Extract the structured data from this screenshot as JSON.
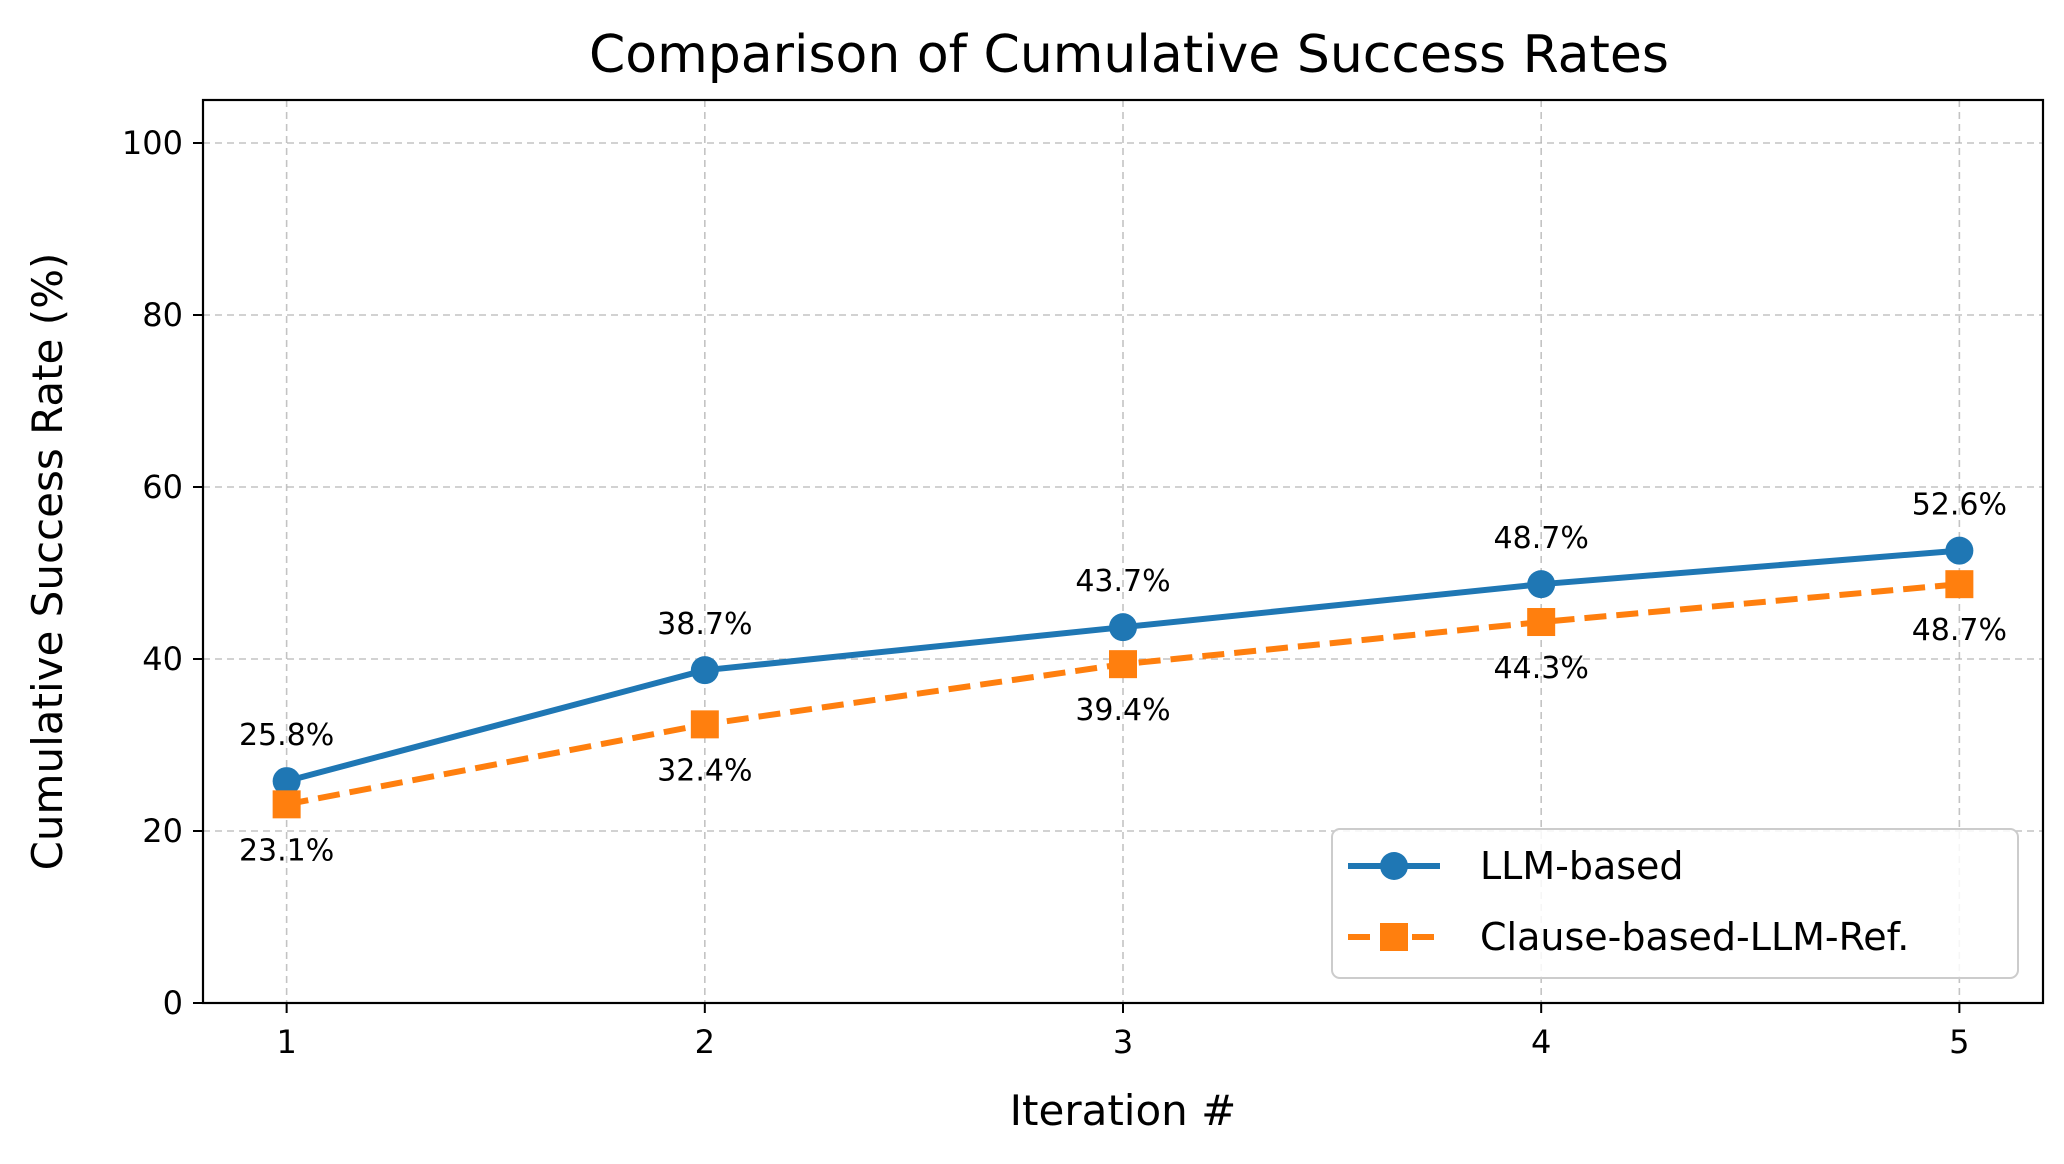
{
  "chart_data": {
    "type": "line",
    "title": "Comparison of Cumulative Success Rates",
    "xlabel": "Iteration #",
    "ylabel": "Cumulative Success Rate (%)",
    "x": [
      1,
      2,
      3,
      4,
      5
    ],
    "x_tick_labels": [
      "1",
      "2",
      "3",
      "4",
      "5"
    ],
    "xlim": [
      0.8,
      5.2
    ],
    "ylim": [
      0,
      105
    ],
    "y_ticks": [
      0,
      20,
      40,
      60,
      80,
      100
    ],
    "y_tick_labels": [
      "0",
      "20",
      "40",
      "60",
      "80",
      "100"
    ],
    "grid": true,
    "legend_position": "lower-right",
    "series": [
      {
        "name": "LLM-based",
        "values": [
          25.8,
          38.7,
          43.7,
          48.7,
          52.6
        ],
        "labels": [
          "25.8%",
          "38.7%",
          "43.7%",
          "48.7%",
          "52.6%"
        ],
        "label_position": "above",
        "color": "#1f77b4",
        "line_style": "solid",
        "marker": "circle"
      },
      {
        "name": "Clause-based-LLM-Ref.",
        "values": [
          23.1,
          32.4,
          39.4,
          44.3,
          48.7
        ],
        "labels": [
          "23.1%",
          "32.4%",
          "39.4%",
          "44.3%",
          "48.7%"
        ],
        "label_position": "below",
        "color": "#ff7f0e",
        "line_style": "dashed",
        "marker": "square"
      }
    ]
  }
}
